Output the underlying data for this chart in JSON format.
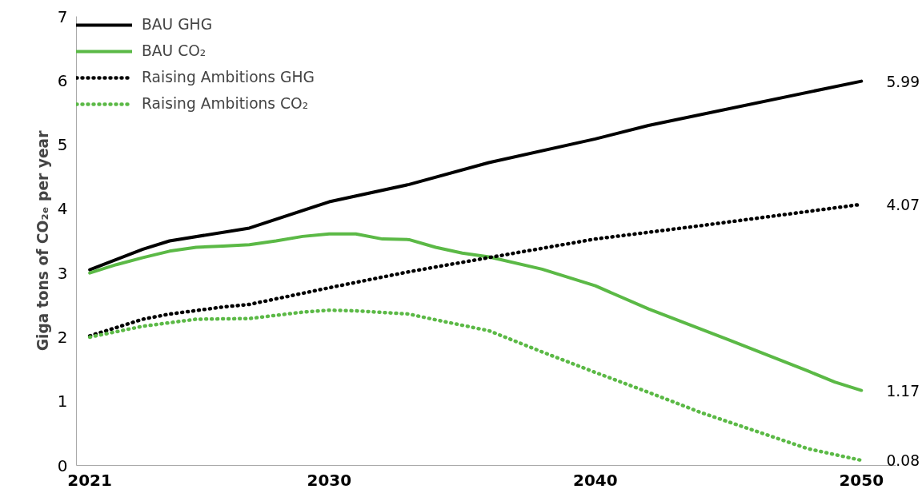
{
  "chart_data": {
    "type": "line",
    "ylabel": "Giga tons of CO₂ₑ per year",
    "xlim": [
      2020.5,
      2051.3
    ],
    "xticks": [
      2021,
      2030,
      2040,
      2050
    ],
    "ylim": [
      0,
      7
    ],
    "yticks": [
      0,
      1,
      2,
      3,
      4,
      5,
      6,
      7
    ],
    "grid": false,
    "legend": "top left",
    "marker": "none",
    "series": [
      {
        "name": "BAU GHG",
        "color": "#000000",
        "line_style": "solid",
        "x": [
          2021,
          2023,
          2024,
          2027,
          2030,
          2033,
          2036,
          2040,
          2042,
          2050
        ],
        "values": [
          3.05,
          3.37,
          3.5,
          3.7,
          4.11,
          4.38,
          4.72,
          5.09,
          5.3,
          5.99
        ],
        "value_labels": [
          null,
          null,
          null,
          null,
          null,
          null,
          null,
          null,
          null,
          "5.99"
        ]
      },
      {
        "name": "BAU CO₂",
        "color": "#5bb946",
        "line_style": "solid",
        "x": [
          2021,
          2022,
          2023,
          2024,
          2025,
          2026,
          2027,
          2028,
          2029,
          2030,
          2031,
          2032,
          2033,
          2034,
          2035,
          2036,
          2038,
          2040,
          2042,
          2045,
          2048,
          2049,
          2050
        ],
        "values": [
          3.0,
          3.13,
          3.24,
          3.34,
          3.4,
          3.42,
          3.44,
          3.5,
          3.57,
          3.61,
          3.61,
          3.53,
          3.52,
          3.4,
          3.31,
          3.25,
          3.06,
          2.8,
          2.44,
          1.96,
          1.47,
          1.3,
          1.17
        ],
        "value_labels": [
          null,
          null,
          null,
          null,
          null,
          null,
          null,
          null,
          null,
          null,
          null,
          null,
          null,
          null,
          null,
          null,
          null,
          null,
          null,
          null,
          null,
          null,
          "1.17"
        ]
      },
      {
        "name": "Raising Ambitions GHG",
        "color": "#000000",
        "line_style": "dotted",
        "x": [
          2021,
          2023,
          2024,
          2026,
          2027,
          2030,
          2033,
          2036,
          2040,
          2044,
          2050
        ],
        "values": [
          2.02,
          2.28,
          2.36,
          2.47,
          2.51,
          2.77,
          3.02,
          3.24,
          3.53,
          3.74,
          4.07
        ],
        "value_labels": [
          null,
          null,
          null,
          null,
          null,
          null,
          null,
          null,
          null,
          null,
          "4.07"
        ]
      },
      {
        "name": "Raising Ambitions CO₂",
        "color": "#5bb946",
        "line_style": "dotted",
        "x": [
          2021,
          2023,
          2025,
          2027,
          2029,
          2030,
          2031,
          2033,
          2034,
          2036,
          2038,
          2040,
          2042,
          2044,
          2046,
          2048,
          2050
        ],
        "values": [
          2.0,
          2.17,
          2.28,
          2.29,
          2.39,
          2.42,
          2.41,
          2.36,
          2.27,
          2.1,
          1.77,
          1.45,
          1.14,
          0.82,
          0.54,
          0.26,
          0.08
        ],
        "value_labels": [
          null,
          null,
          null,
          null,
          null,
          null,
          null,
          null,
          null,
          null,
          null,
          null,
          null,
          null,
          null,
          null,
          "0.08"
        ]
      }
    ]
  }
}
